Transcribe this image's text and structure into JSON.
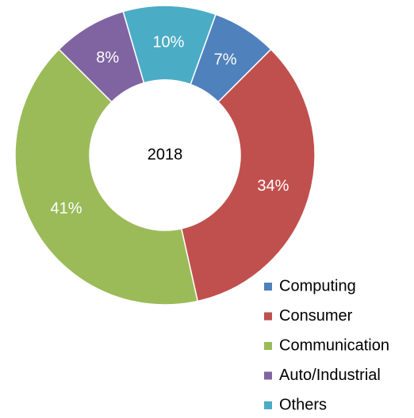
{
  "chart_data": {
    "type": "donut",
    "center_label": "2018",
    "categories": [
      "Computing",
      "Consumer",
      "Communication",
      "Auto/Industrial",
      "Others"
    ],
    "values": [
      7,
      34,
      41,
      8,
      10
    ],
    "value_labels": [
      "7%",
      "34%",
      "41%",
      "8%",
      "10%"
    ],
    "colors": [
      "#4f81bd",
      "#c0504d",
      "#9bbb59",
      "#8064a2",
      "#4bacc6"
    ],
    "legend": "bottom-right"
  }
}
